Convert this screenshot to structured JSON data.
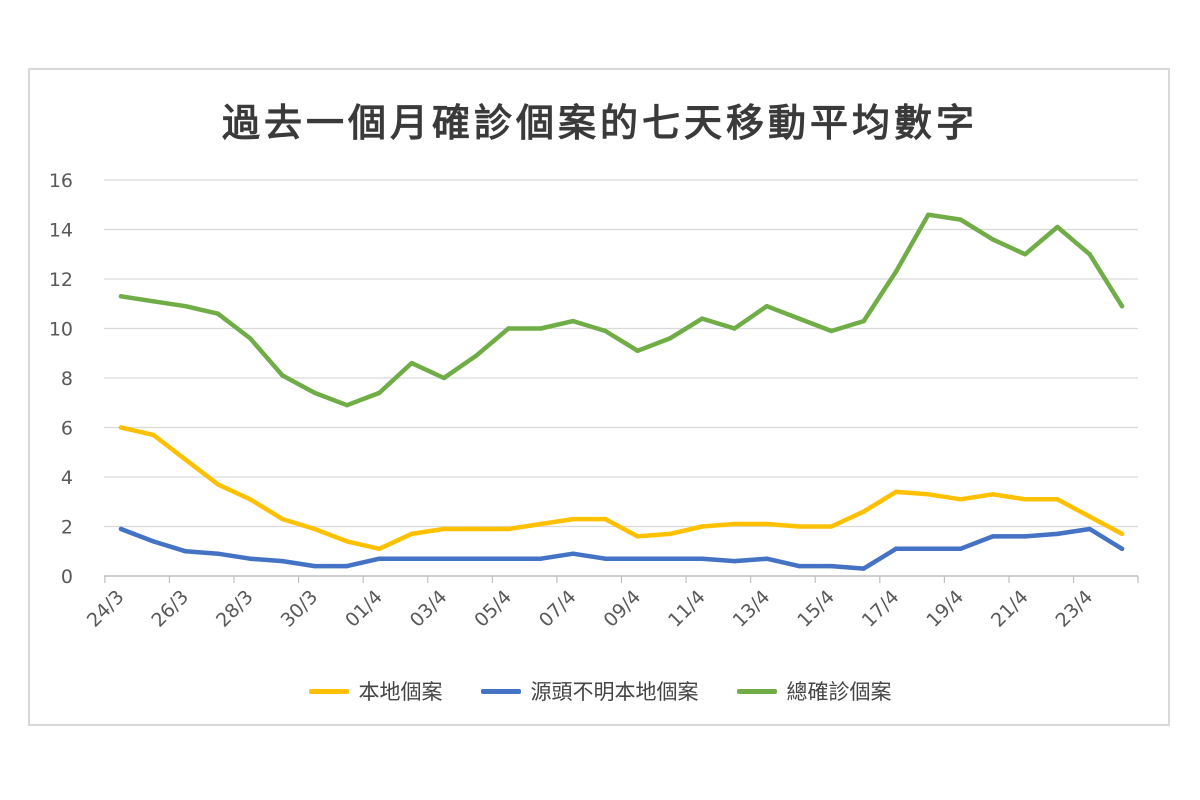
{
  "chart_data": {
    "type": "line",
    "title": "過去一個月確診個案的七天移動平均數字",
    "ylim": [
      0,
      16
    ],
    "yticks": [
      0,
      2,
      4,
      6,
      8,
      10,
      12,
      14,
      16
    ],
    "grid": true,
    "legend_position": "bottom",
    "x": [
      "24/3",
      "25/3",
      "26/3",
      "27/3",
      "28/3",
      "29/3",
      "30/3",
      "31/3",
      "01/4",
      "02/4",
      "03/4",
      "04/4",
      "05/4",
      "06/4",
      "07/4",
      "08/4",
      "09/4",
      "10/4",
      "11/4",
      "12/4",
      "13/4",
      "14/4",
      "15/4",
      "16/4",
      "17/4",
      "18/4",
      "19/4",
      "20/4",
      "21/4",
      "22/4",
      "23/4",
      "24/4"
    ],
    "xtick_labels": [
      "24/3",
      "26/3",
      "28/3",
      "30/3",
      "01/4",
      "03/4",
      "05/4",
      "07/4",
      "09/4",
      "11/4",
      "13/4",
      "15/4",
      "17/4",
      "19/4",
      "21/4",
      "23/4"
    ],
    "series": [
      {
        "name": "本地個案",
        "color": "#FFC000",
        "values": [
          6.0,
          5.7,
          4.7,
          3.7,
          3.1,
          2.3,
          1.9,
          1.4,
          1.1,
          1.7,
          1.9,
          1.9,
          1.9,
          2.1,
          2.3,
          2.3,
          1.6,
          1.7,
          2.0,
          2.1,
          2.1,
          2.0,
          2.0,
          2.6,
          3.4,
          3.3,
          3.1,
          3.3,
          3.1,
          3.1,
          2.4,
          1.7
        ]
      },
      {
        "name": "源頭不明本地個案",
        "color": "#4472C4",
        "values": [
          1.9,
          1.4,
          1.0,
          0.9,
          0.7,
          0.6,
          0.4,
          0.4,
          0.7,
          0.7,
          0.7,
          0.7,
          0.7,
          0.7,
          0.9,
          0.7,
          0.7,
          0.7,
          0.7,
          0.6,
          0.7,
          0.4,
          0.4,
          0.3,
          1.1,
          1.1,
          1.1,
          1.6,
          1.6,
          1.7,
          1.9,
          1.1
        ]
      },
      {
        "name": "總確診個案",
        "color": "#70AD47",
        "values": [
          11.3,
          11.1,
          10.9,
          10.6,
          9.6,
          8.1,
          7.4,
          6.9,
          7.4,
          8.6,
          8.0,
          8.9,
          10.0,
          10.0,
          10.3,
          9.9,
          9.1,
          9.6,
          10.4,
          10.0,
          10.9,
          10.4,
          9.9,
          10.3,
          12.3,
          14.6,
          14.4,
          13.6,
          13.0,
          14.1,
          13.0,
          10.9
        ]
      }
    ]
  }
}
